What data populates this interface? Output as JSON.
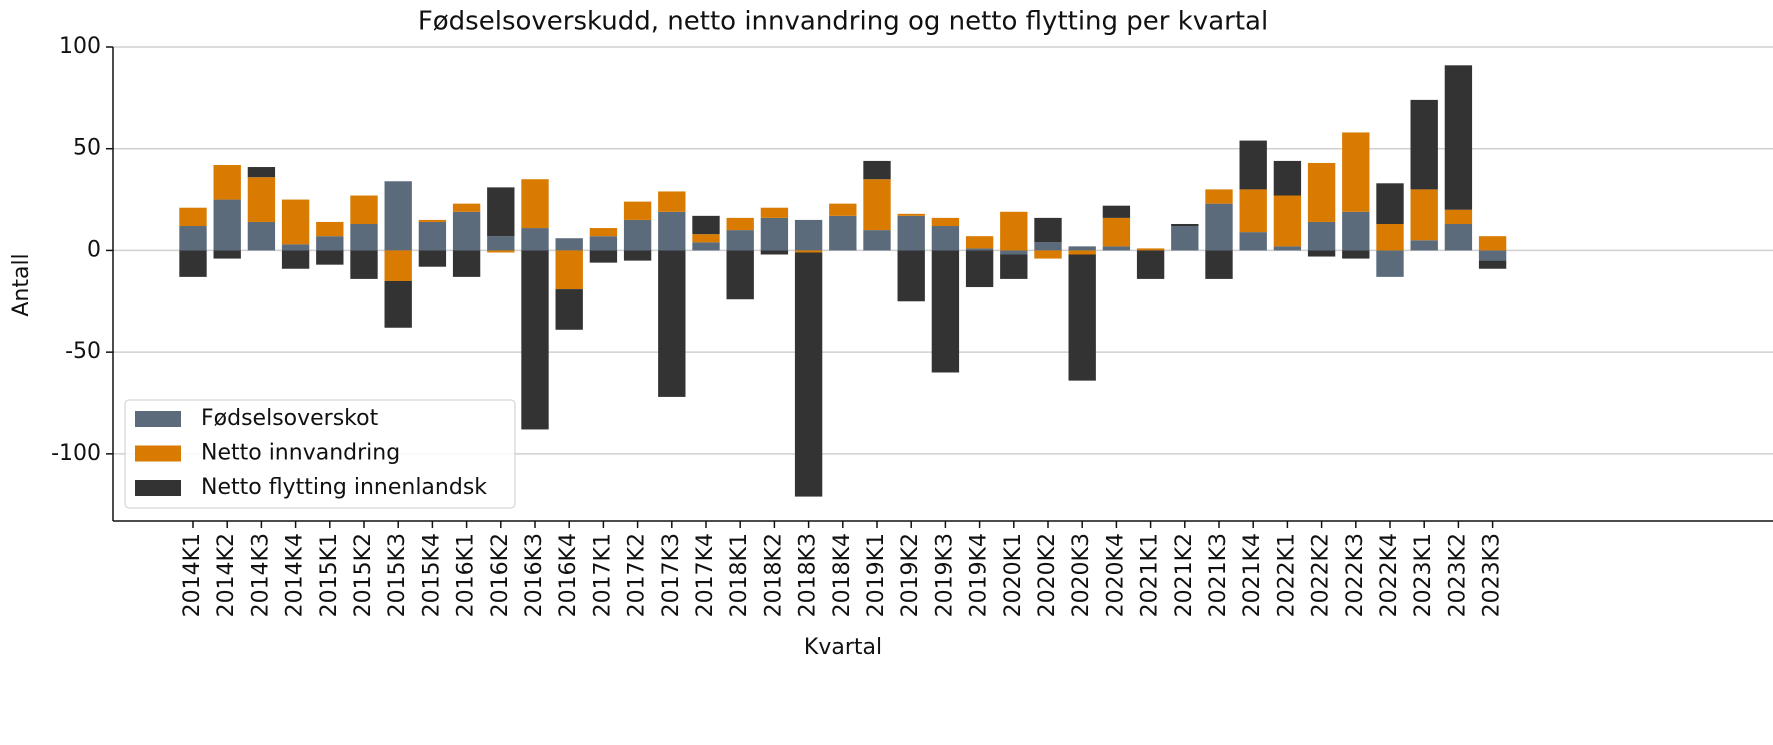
{
  "chart_data": {
    "type": "bar",
    "stacked": true,
    "title": "Fødselsoverskudd, netto innvandring og netto flytting per kvartal",
    "xlabel": "Kvartal",
    "ylabel": "Antall",
    "categories": [
      "2014K1",
      "2014K2",
      "2014K3",
      "2014K4",
      "2015K1",
      "2015K2",
      "2015K3",
      "2015K4",
      "2016K1",
      "2016K2",
      "2016K3",
      "2016K4",
      "2017K1",
      "2017K2",
      "2017K3",
      "2017K4",
      "2018K1",
      "2018K2",
      "2018K3",
      "2018K4",
      "2019K1",
      "2019K2",
      "2019K3",
      "2019K4",
      "2020K1",
      "2020K2",
      "2020K3",
      "2020K4",
      "2021K1",
      "2021K2",
      "2021K3",
      "2021K4",
      "2022K1",
      "2022K2",
      "2022K3",
      "2022K4",
      "2023K1",
      "2023K2",
      "2023K3"
    ],
    "series": [
      {
        "name": "Fødselsoverskot",
        "color": "#5b6b7c",
        "values": [
          12,
          25,
          14,
          3,
          7,
          13,
          34,
          14,
          19,
          7,
          11,
          6,
          7,
          15,
          19,
          4,
          10,
          16,
          15,
          17,
          10,
          17,
          12,
          1,
          -2,
          4,
          2,
          2,
          0,
          12,
          23,
          9,
          2,
          14,
          19,
          -13,
          5,
          13,
          -5
        ]
      },
      {
        "name": "Netto innvandring",
        "color": "#d97b00",
        "values": [
          9,
          17,
          22,
          22,
          7,
          14,
          -15,
          1,
          4,
          -1,
          24,
          -19,
          4,
          9,
          10,
          4,
          6,
          5,
          -1,
          6,
          25,
          1,
          4,
          6,
          19,
          -4,
          -2,
          14,
          1,
          0,
          7,
          21,
          25,
          29,
          39,
          13,
          25,
          7,
          7
        ]
      },
      {
        "name": "Netto flytting innenlandsk",
        "color": "#333333",
        "values": [
          -13,
          -4,
          5,
          -9,
          -7,
          -14,
          -23,
          -8,
          -13,
          24,
          -88,
          -20,
          -6,
          -5,
          -72,
          9,
          -24,
          -2,
          -120,
          0,
          9,
          -25,
          -60,
          -18,
          -12,
          12,
          -62,
          6,
          -14,
          1,
          -14,
          24,
          17,
          -3,
          -4,
          20,
          44,
          71,
          -4
        ]
      }
    ],
    "ylim": [
      -133,
      100
    ],
    "yticks": [
      -100,
      -50,
      0,
      50,
      100
    ],
    "grid": true,
    "legend": "lower left"
  }
}
